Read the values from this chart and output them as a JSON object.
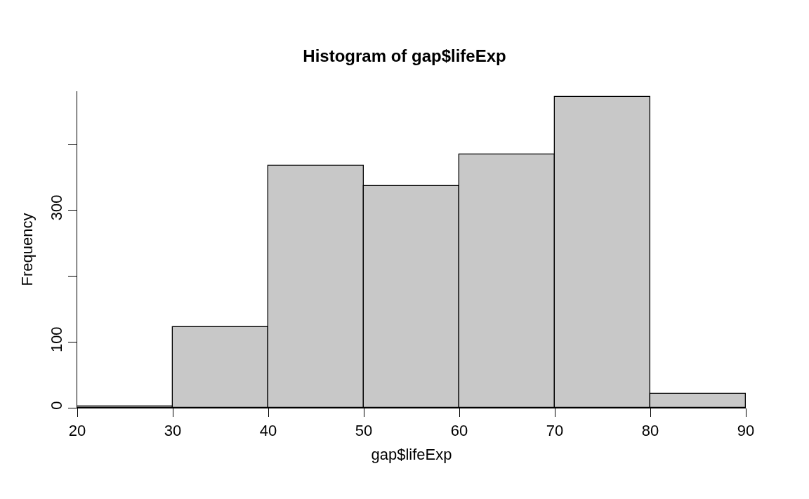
{
  "chart_data": {
    "type": "histogram",
    "title": "Histogram of gap$lifeExp",
    "xlabel": "gap$lifeExp",
    "ylabel": "Frequency",
    "bins": [
      20,
      30,
      40,
      50,
      60,
      70,
      80,
      90
    ],
    "values": [
      2,
      122,
      367,
      336,
      384,
      472,
      21
    ],
    "color": "#c8c8c8",
    "xlim": [
      20,
      90
    ],
    "xticks": [
      20,
      30,
      40,
      50,
      60,
      70,
      80,
      90
    ],
    "ylim": [
      0,
      480
    ],
    "yticks": [
      0,
      100,
      {
        "value": 200,
        "label": null
      },
      300,
      {
        "value": 400,
        "label": null
      }
    ]
  }
}
